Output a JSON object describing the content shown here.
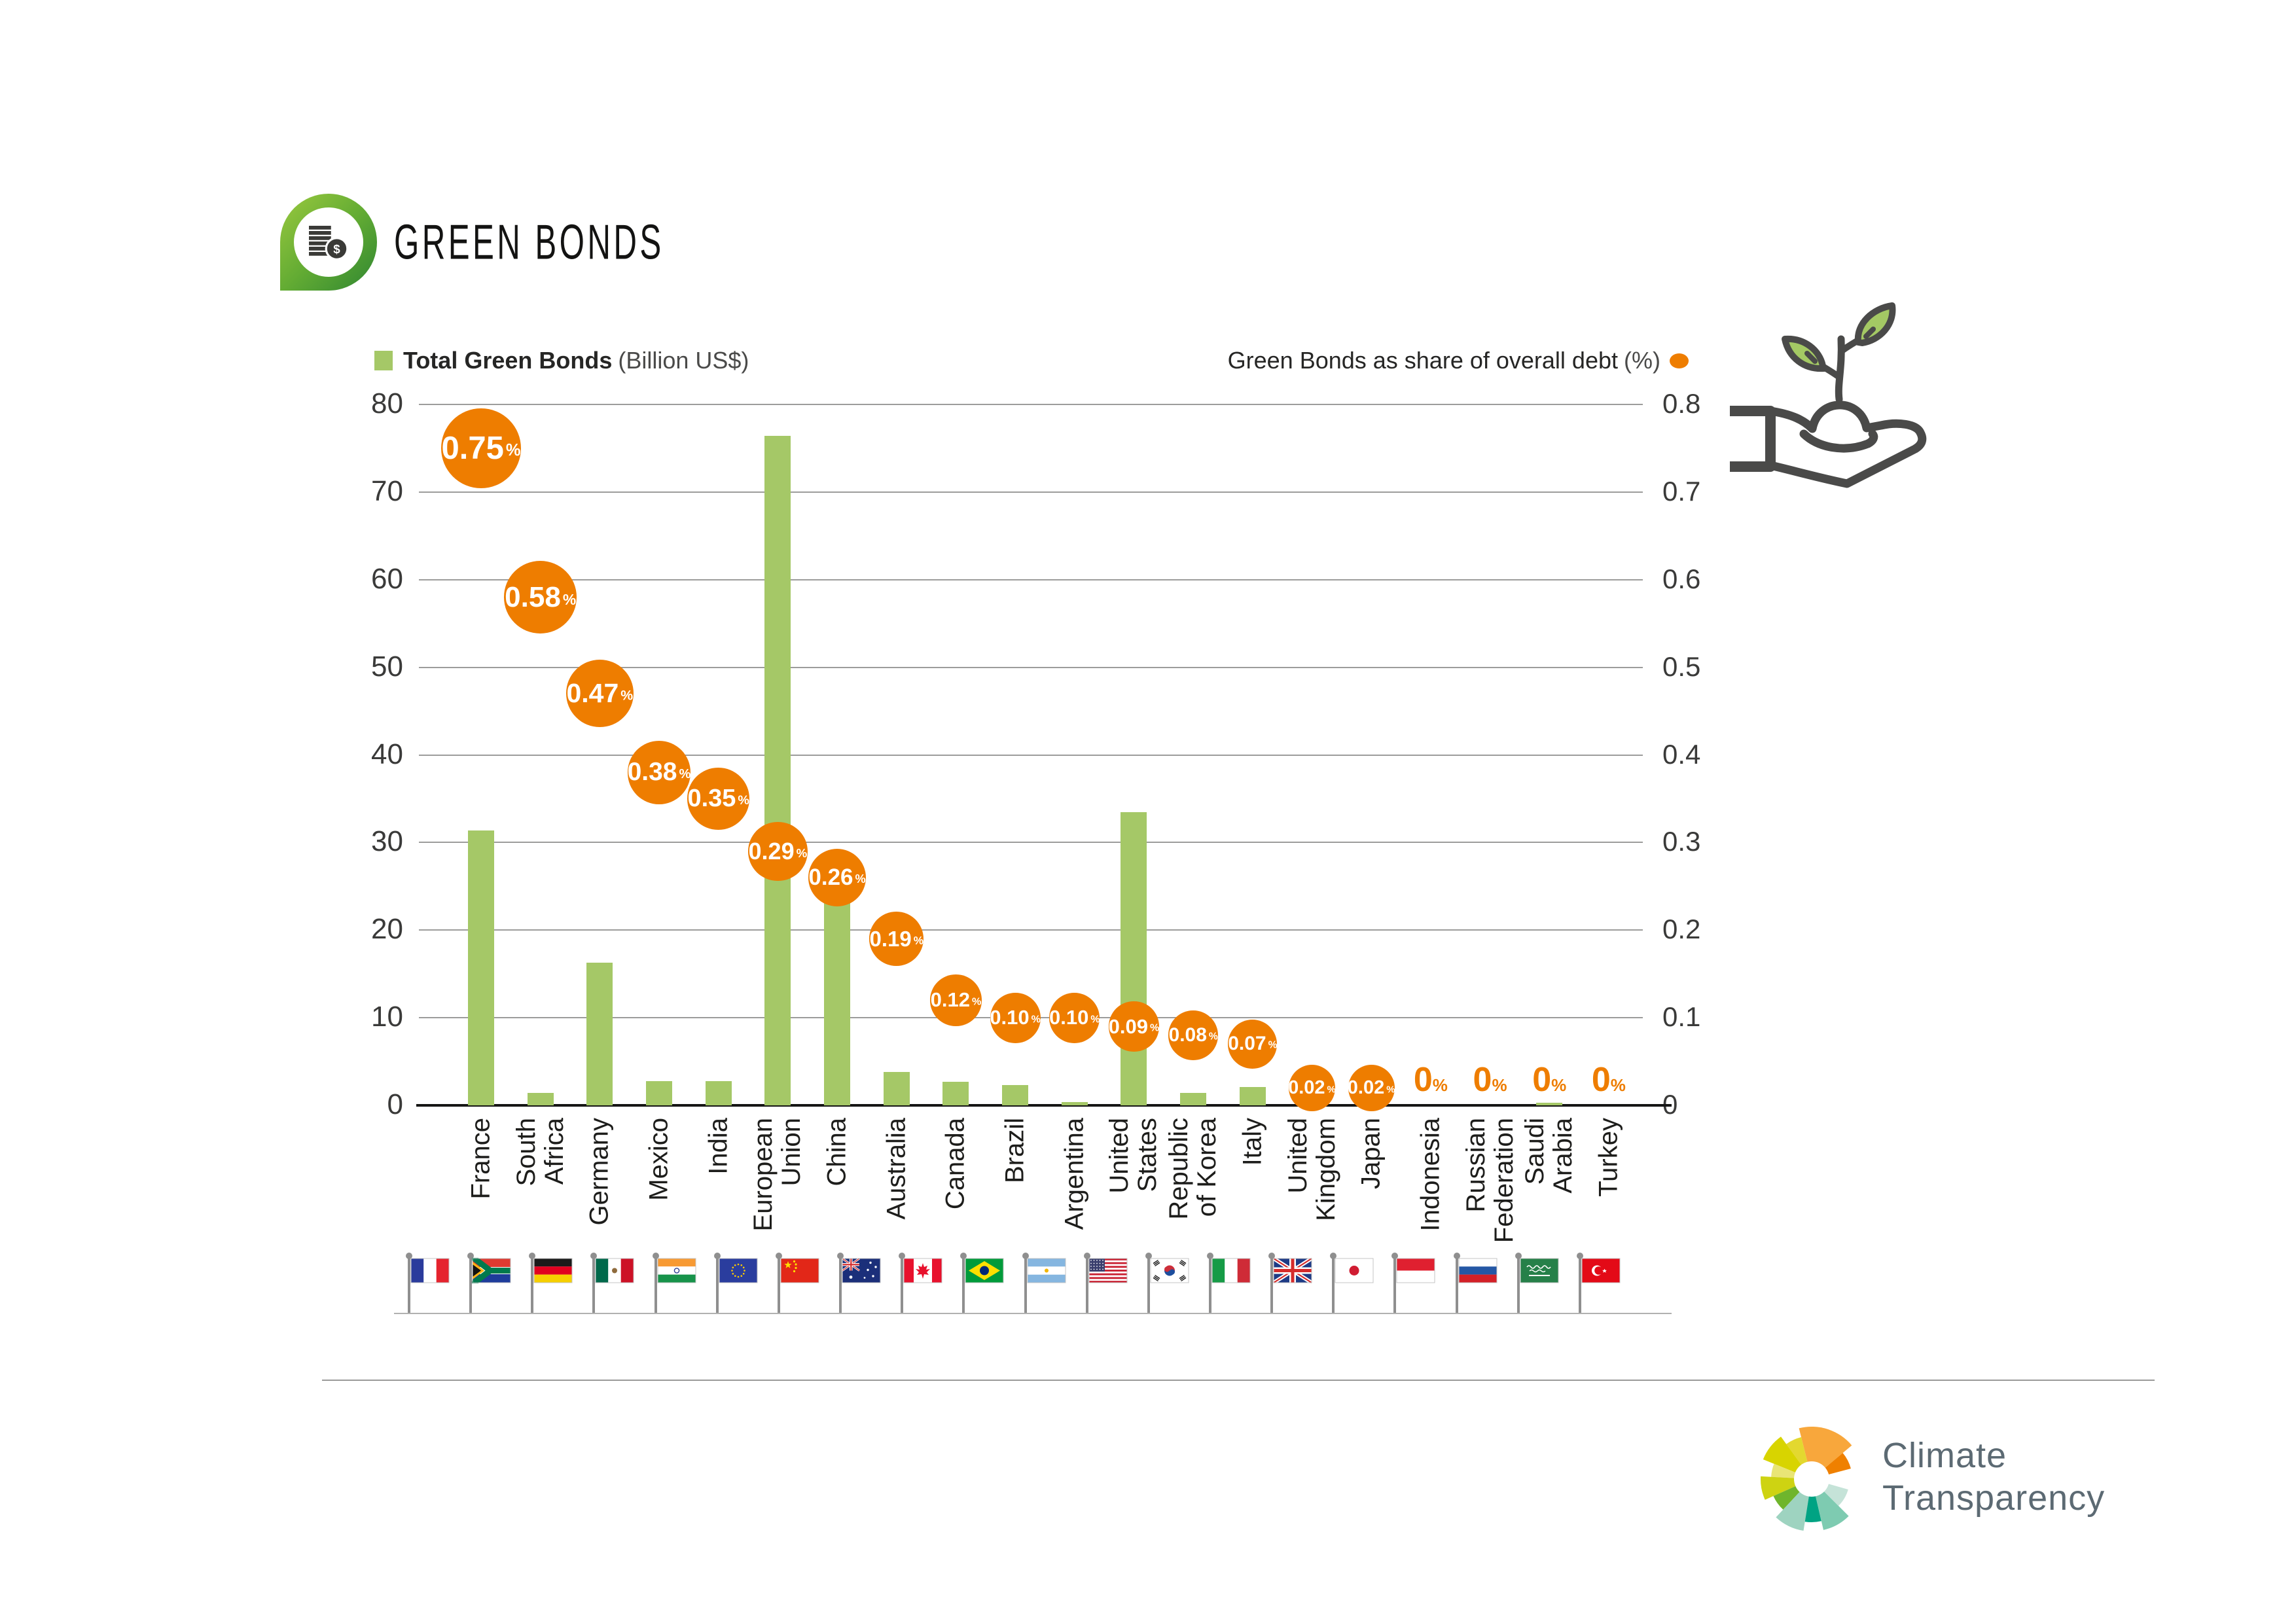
{
  "header": {
    "title": "GREEN BONDS"
  },
  "legend": {
    "bars": {
      "label": "Total Green Bonds",
      "unit": "(Billion US$)",
      "color": "#a5c867"
    },
    "share": {
      "label": "Green Bonds as share of overall debt",
      "unit": "(%)",
      "color": "#ee7d00"
    }
  },
  "chart_data": {
    "type": "bar",
    "title": "Green Bonds",
    "categories": [
      "France",
      "South\nAfrica",
      "Germany",
      "Mexico",
      "India",
      "European\nUnion",
      "China",
      "Australia",
      "Canada",
      "Brazil",
      "Argentina",
      "United\nStates",
      "Republic\nof Korea",
      "Italy",
      "United\nKingdom",
      "Japan",
      "Indonesia",
      "Russian\nFederation",
      "Saudi\nArabia",
      "Turkey"
    ],
    "series": [
      {
        "name": "Total Green Bonds (Billion US$)",
        "type": "bar",
        "axis": "left",
        "values": [
          31.4,
          1.4,
          16.3,
          2.8,
          2.8,
          76.4,
          24.0,
          3.8,
          2.7,
          2.3,
          0.4,
          33.5,
          1.4,
          2.1,
          0,
          0,
          0,
          0,
          0.3,
          0
        ]
      },
      {
        "name": "Green Bonds as share of overall debt (%)",
        "type": "bubble",
        "axis": "right",
        "values": [
          0.75,
          0.58,
          0.47,
          0.38,
          0.35,
          0.29,
          0.26,
          0.19,
          0.12,
          0.1,
          0.1,
          0.09,
          0.08,
          0.07,
          0.02,
          0.02,
          0,
          0,
          0,
          0
        ],
        "labels": [
          "0.75",
          "0.58",
          "0.47",
          "0.38",
          "0.35",
          "0.29",
          "0.26",
          "0.19",
          "0.12",
          "0.10",
          "0.10",
          "0.09",
          "0.08",
          "0.07",
          "0.02",
          "0.02",
          "0",
          "0",
          "0",
          "0"
        ]
      }
    ],
    "left_axis": {
      "ticks": [
        0,
        10,
        20,
        30,
        40,
        50,
        60,
        70,
        80
      ],
      "labels": [
        "0",
        "10",
        "20",
        "30",
        "40",
        "50",
        "60",
        "70",
        "80"
      ],
      "range": [
        0,
        80
      ]
    },
    "right_axis": {
      "ticks": [
        0,
        0.1,
        0.2,
        0.3,
        0.4,
        0.5,
        0.6,
        0.7,
        0.8
      ],
      "labels": [
        "0",
        "0.1",
        "0.2",
        "0.3",
        "0.4",
        "0.5",
        "0.6",
        "0.7",
        "0.8"
      ],
      "range": [
        0,
        0.8
      ]
    },
    "grid": true,
    "legend_position": "top",
    "bar_color": "#a5c867",
    "bubble_color": "#ee7d00"
  },
  "flags": [
    "fr",
    "za",
    "de",
    "mx",
    "in",
    "eu",
    "cn",
    "au",
    "ca",
    "br",
    "ar",
    "us",
    "kr",
    "it",
    "gb",
    "jp",
    "id",
    "ru",
    "sa",
    "tr"
  ],
  "footer": {
    "logo_line1": "Climate",
    "logo_line2": "Transparency",
    "logo_colors": [
      "#ef8000",
      "#f8a73c",
      "#e3d82f",
      "#d8d400",
      "#e9e575",
      "#ced312",
      "#6fb52c",
      "#9ed3c0",
      "#00a383",
      "#7ecbb1",
      "#c5e3d8"
    ]
  }
}
